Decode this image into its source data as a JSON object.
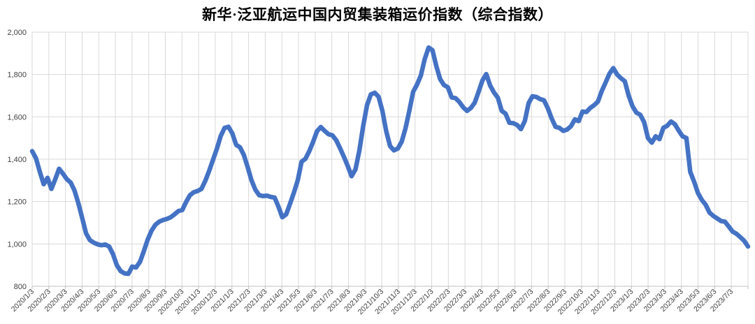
{
  "page": {
    "background": "#ffffff"
  },
  "chart": {
    "title": "新华·泛亚航运中国内贸集装箱运价指数（综合指数）",
    "line_color": "#4472c4",
    "gridline_color": "#d9d9d9",
    "axis_color": "#bfbfbf",
    "label_color": "#404040"
  },
  "chart_data": {
    "type": "line",
    "title": "新华·泛亚航运中国内贸集装箱运价指数（综合指数）",
    "xlabel": "",
    "ylabel": "",
    "ylim": [
      800,
      2000
    ],
    "grid": true,
    "legend": false,
    "x_label_rotation": 45,
    "y_ticks": [
      {
        "value": 2000,
        "label": "2,000"
      },
      {
        "value": 1800,
        "label": "1,800"
      },
      {
        "value": 1600,
        "label": "1,600"
      },
      {
        "value": 1400,
        "label": "1,400"
      },
      {
        "value": 1200,
        "label": "1,200"
      },
      {
        "value": 1000,
        "label": "1,000"
      },
      {
        "value": 800,
        "label": "800"
      }
    ],
    "x_tick_labels": [
      "2020/1/3",
      "2020/2/3",
      "2020/3/3",
      "2020/4/3",
      "2020/5/3",
      "2020/6/3",
      "2020/7/3",
      "2020/8/3",
      "2020/9/3",
      "2020/10/3",
      "2020/11/3",
      "2020/12/3",
      "2021/1/3",
      "2021/2/3",
      "2021/3/3",
      "2021/4/3",
      "2021/5/3",
      "2021/6/3",
      "2021/7/3",
      "2021/8/3",
      "2021/9/3",
      "2021/10/3",
      "2021/11/3",
      "2021/12/3",
      "2022/1/3",
      "2022/2/3",
      "2022/3/3",
      "2022/4/3",
      "2022/5/3",
      "2022/6/3",
      "2022/7/3",
      "2022/8/3",
      "2022/9/3",
      "2022/10/3",
      "2022/11/3",
      "2022/12/3",
      "2023/1/3",
      "2023/2/3",
      "2023/3/3",
      "2023/4/3",
      "2023/5/3",
      "2023/6/3",
      "2023/7/3"
    ],
    "series": [
      {
        "name": "综合指数",
        "interval": "weekly",
        "dates": [
          "2020/1/3",
          "2020/1/10",
          "2020/1/17",
          "2020/1/24",
          "2020/1/31",
          "2020/2/7",
          "2020/2/14",
          "2020/2/21",
          "2020/2/28",
          "2020/3/6",
          "2020/3/13",
          "2020/3/20",
          "2020/3/27",
          "2020/4/3",
          "2020/4/10",
          "2020/4/17",
          "2020/4/24",
          "2020/5/1",
          "2020/5/8",
          "2020/5/15",
          "2020/5/22",
          "2020/5/29",
          "2020/6/5",
          "2020/6/12",
          "2020/6/19",
          "2020/6/26",
          "2020/7/3",
          "2020/7/10",
          "2020/7/17",
          "2020/7/24",
          "2020/7/31",
          "2020/8/7",
          "2020/8/14",
          "2020/8/21",
          "2020/8/28",
          "2020/9/4",
          "2020/9/11",
          "2020/9/18",
          "2020/9/25",
          "2020/10/2",
          "2020/10/9",
          "2020/10/16",
          "2020/10/23",
          "2020/10/30",
          "2020/11/6",
          "2020/11/13",
          "2020/11/20",
          "2020/11/27",
          "2020/12/4",
          "2020/12/11",
          "2020/12/18",
          "2020/12/25",
          "2021/1/1",
          "2021/1/8",
          "2021/1/15",
          "2021/1/22",
          "2021/1/29",
          "2021/2/5",
          "2021/2/12",
          "2021/2/19",
          "2021/2/26",
          "2021/3/5",
          "2021/3/12",
          "2021/3/19",
          "2021/3/26",
          "2021/4/2",
          "2021/4/9",
          "2021/4/16",
          "2021/4/23",
          "2021/4/30",
          "2021/5/7",
          "2021/5/14",
          "2021/5/21",
          "2021/5/28",
          "2021/6/4",
          "2021/6/11",
          "2021/6/18",
          "2021/6/25",
          "2021/7/2",
          "2021/7/9",
          "2021/7/16",
          "2021/7/23",
          "2021/7/30",
          "2021/8/6",
          "2021/8/13",
          "2021/8/20",
          "2021/8/27",
          "2021/9/3",
          "2021/9/10",
          "2021/9/17",
          "2021/9/24",
          "2021/10/1",
          "2021/10/8",
          "2021/10/15",
          "2021/10/22",
          "2021/10/29",
          "2021/11/5",
          "2021/11/12",
          "2021/11/19",
          "2021/11/26",
          "2021/12/3",
          "2021/12/10",
          "2021/12/17",
          "2021/12/24",
          "2021/12/31",
          "2022/1/7",
          "2022/1/14",
          "2022/1/21",
          "2022/1/28",
          "2022/2/4",
          "2022/2/11",
          "2022/2/18",
          "2022/2/25",
          "2022/3/4",
          "2022/3/11",
          "2022/3/18",
          "2022/3/25",
          "2022/4/1",
          "2022/4/8",
          "2022/4/15",
          "2022/4/22",
          "2022/4/29",
          "2022/5/6",
          "2022/5/13",
          "2022/5/20",
          "2022/5/27",
          "2022/6/3",
          "2022/6/10",
          "2022/6/17",
          "2022/6/24",
          "2022/7/1",
          "2022/7/8",
          "2022/7/15",
          "2022/7/22",
          "2022/7/29",
          "2022/8/5",
          "2022/8/12",
          "2022/8/19",
          "2022/8/26",
          "2022/9/2",
          "2022/9/9",
          "2022/9/16",
          "2022/9/23",
          "2022/9/30",
          "2022/10/7",
          "2022/10/14",
          "2022/10/21",
          "2022/10/28",
          "2022/11/4",
          "2022/11/11",
          "2022/11/18",
          "2022/11/25",
          "2022/12/2",
          "2022/12/9",
          "2022/12/16",
          "2022/12/23",
          "2022/12/30",
          "2023/1/6",
          "2023/1/13",
          "2023/1/20",
          "2023/1/27",
          "2023/2/3",
          "2023/2/10",
          "2023/2/17",
          "2023/2/24",
          "2023/3/3",
          "2023/3/10",
          "2023/3/17",
          "2023/3/24",
          "2023/3/31",
          "2023/4/7",
          "2023/4/14",
          "2023/4/21",
          "2023/4/28",
          "2023/5/5",
          "2023/5/12",
          "2023/5/19",
          "2023/5/26",
          "2023/6/2",
          "2023/6/9",
          "2023/6/16",
          "2023/6/23",
          "2023/6/30",
          "2023/7/7",
          "2023/7/14",
          "2023/7/21",
          "2023/7/28"
        ],
        "values": [
          1438,
          1404,
          1340,
          1282,
          1312,
          1260,
          1305,
          1355,
          1332,
          1306,
          1290,
          1252,
          1192,
          1122,
          1050,
          1018,
          1006,
          998,
          994,
          997,
          988,
          952,
          900,
          872,
          861,
          859,
          893,
          889,
          915,
          965,
          1020,
          1062,
          1090,
          1105,
          1113,
          1118,
          1126,
          1140,
          1155,
          1160,
          1198,
          1230,
          1244,
          1250,
          1260,
          1298,
          1345,
          1398,
          1450,
          1510,
          1548,
          1553,
          1522,
          1468,
          1456,
          1420,
          1362,
          1300,
          1256,
          1230,
          1226,
          1228,
          1222,
          1219,
          1176,
          1126,
          1140,
          1190,
          1242,
          1300,
          1388,
          1402,
          1438,
          1482,
          1532,
          1552,
          1534,
          1518,
          1513,
          1490,
          1452,
          1412,
          1368,
          1320,
          1352,
          1440,
          1556,
          1655,
          1706,
          1714,
          1695,
          1628,
          1532,
          1462,
          1442,
          1450,
          1482,
          1545,
          1628,
          1718,
          1752,
          1795,
          1872,
          1927,
          1915,
          1840,
          1778,
          1750,
          1740,
          1692,
          1688,
          1670,
          1645,
          1628,
          1642,
          1667,
          1718,
          1772,
          1802,
          1748,
          1715,
          1690,
          1628,
          1615,
          1572,
          1570,
          1562,
          1542,
          1580,
          1665,
          1697,
          1694,
          1684,
          1678,
          1640,
          1592,
          1553,
          1548,
          1534,
          1540,
          1556,
          1588,
          1580,
          1625,
          1623,
          1642,
          1655,
          1672,
          1722,
          1762,
          1804,
          1830,
          1800,
          1782,
          1768,
          1700,
          1650,
          1620,
          1610,
          1575,
          1500,
          1478,
          1508,
          1495,
          1548,
          1558,
          1578,
          1565,
          1535,
          1508,
          1500,
          1340,
          1294,
          1240,
          1208,
          1185,
          1148,
          1132,
          1120,
          1108,
          1105,
          1082,
          1058,
          1048,
          1032,
          1015,
          988
        ]
      }
    ]
  }
}
